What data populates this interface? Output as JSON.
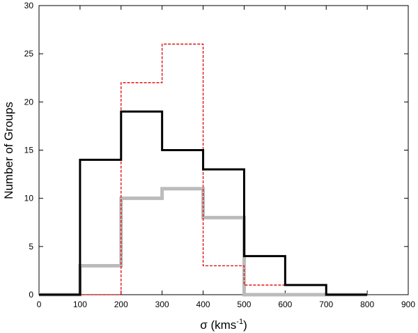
{
  "chart_data": {
    "type": "step-histogram",
    "xlabel": "σ (kms",
    "xlabel_sup": "-1",
    "xlabel_close": ")",
    "ylabel": "Number of Groups",
    "xlim": [
      0,
      900
    ],
    "ylim": [
      0,
      30
    ],
    "xticks": [
      0,
      100,
      200,
      300,
      400,
      500,
      600,
      700,
      800,
      900
    ],
    "yticks": [
      0,
      5,
      10,
      15,
      20,
      25,
      30
    ],
    "grid": false,
    "legend": "none",
    "series": [
      {
        "color": "#bbbbbb",
        "style": "solid-thick",
        "bin_edges": [
          0,
          100,
          200,
          300,
          400,
          500,
          600,
          700,
          800
        ],
        "counts": [
          0,
          3,
          10,
          11,
          8,
          0,
          0,
          0
        ]
      },
      {
        "color": "#e00000",
        "style": "dashed",
        "bin_edges": [
          100,
          200,
          300,
          400,
          500,
          600
        ],
        "counts": [
          0,
          22,
          26,
          3,
          1
        ]
      },
      {
        "color": "#000000",
        "style": "solid",
        "bin_edges": [
          0,
          100,
          200,
          300,
          400,
          500,
          600,
          700,
          800
        ],
        "counts": [
          0,
          14,
          19,
          15,
          13,
          4,
          1,
          0
        ]
      }
    ]
  }
}
